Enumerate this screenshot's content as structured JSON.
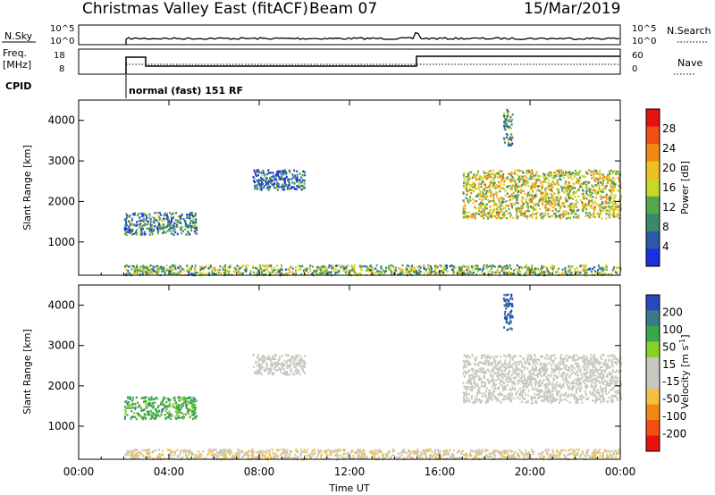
{
  "header": {
    "station": "Christmas Valley East (fitACF)",
    "beam": "Beam 07",
    "date": "15/Mar/2019"
  },
  "top_panels": {
    "nsky_label": "N.Sky",
    "nsearch_label": "N.Search",
    "nsky_ticks": [
      "10^5",
      "10^0"
    ],
    "nsearch_ticks": [
      "10^5",
      "10^0"
    ],
    "freq_label_1": "Freq.",
    "freq_label_2": "[MHz]",
    "freq_ticks": [
      "18",
      "8"
    ],
    "nave_label": "Nave",
    "nave_ticks": [
      "60",
      "0"
    ],
    "cpid_label": "CPID",
    "cpid_text": "normal (fast) 151 RF"
  },
  "colors": {
    "power_scale": [
      "#1a2fe0",
      "#2a5aa8",
      "#3a8a6a",
      "#55a84a",
      "#c8d82a",
      "#f0c020",
      "#f08a10",
      "#f05010",
      "#e81010"
    ],
    "velocity_scale": [
      "#e81010",
      "#f05010",
      "#f08a10",
      "#f5c040",
      "#c8c8c0",
      "#c8c8c0",
      "#8ad02a",
      "#3aa84a",
      "#3a7a8a",
      "#2a48c0"
    ],
    "axis": "#000000"
  },
  "chart_data": [
    {
      "type": "heatmap",
      "name": "power-panel",
      "title": "",
      "xlabel": "",
      "ylabel": "Slant Range [km]",
      "x_ticks": [
        "00:00",
        "04:00",
        "08:00",
        "12:00",
        "16:00",
        "20:00",
        "00:00"
      ],
      "x_range_hours": [
        0,
        24
      ],
      "ylim": [
        180,
        4500
      ],
      "y_ticks": [
        1000,
        2000,
        3000,
        4000
      ],
      "colorbar": {
        "label": "Power [dB]",
        "range": [
          0,
          30
        ],
        "ticks": [
          "4",
          "8",
          "12",
          "16",
          "20",
          "24",
          "28"
        ]
      },
      "regions": [
        {
          "feature": "near-range ground scatter",
          "t_hours": [
            2.0,
            24.0
          ],
          "range_km": [
            200,
            450
          ],
          "level": 12
        },
        {
          "feature": "early slanted echo band",
          "t_hours": [
            2.0,
            5.2
          ],
          "range_km": [
            1200,
            1750
          ],
          "level": 8
        },
        {
          "feature": "scattered echoes",
          "t_hours": [
            7.7,
            10.0
          ],
          "range_km": [
            2300,
            2800
          ],
          "level": 6
        },
        {
          "feature": "evening scatter",
          "t_hours": [
            17.0,
            24.0
          ],
          "range_km": [
            1600,
            2800
          ],
          "level": 16
        },
        {
          "feature": "isolated high-range echo",
          "t_hours": [
            18.8,
            19.2
          ],
          "range_km": [
            3400,
            4300
          ],
          "level": 10
        }
      ]
    },
    {
      "type": "heatmap",
      "name": "velocity-panel",
      "title": "",
      "xlabel": "Time UT",
      "ylabel": "Slant Range [km]",
      "x_ticks": [
        "00:00",
        "04:00",
        "08:00",
        "12:00",
        "16:00",
        "20:00",
        "00:00"
      ],
      "x_range_hours": [
        0,
        24
      ],
      "ylim": [
        180,
        4500
      ],
      "y_ticks": [
        1000,
        2000,
        3000,
        4000
      ],
      "colorbar": {
        "label": "Velocity [m s",
        "label_sup": "-1",
        "label_end": "]",
        "ticks": [
          "200",
          "100",
          "50",
          "15",
          "-15",
          "-50",
          "-100",
          "-200"
        ]
      },
      "regions": [
        {
          "feature": "near-range ground scatter",
          "t_hours": [
            2.0,
            24.0
          ],
          "range_km": [
            200,
            450
          ],
          "velocity": -40
        },
        {
          "feature": "early slanted echo band",
          "t_hours": [
            2.0,
            5.2
          ],
          "range_km": [
            1200,
            1750
          ],
          "velocity": 120
        },
        {
          "feature": "scattered echoes",
          "t_hours": [
            7.7,
            10.0
          ],
          "range_km": [
            2300,
            2800
          ],
          "velocity": 0
        },
        {
          "feature": "evening scatter",
          "t_hours": [
            17.0,
            24.0
          ],
          "range_km": [
            1600,
            2800
          ],
          "velocity": 0
        },
        {
          "feature": "isolated high-range echo",
          "t_hours": [
            18.8,
            19.2
          ],
          "range_km": [
            3400,
            4300
          ],
          "velocity": 200
        }
      ]
    }
  ]
}
